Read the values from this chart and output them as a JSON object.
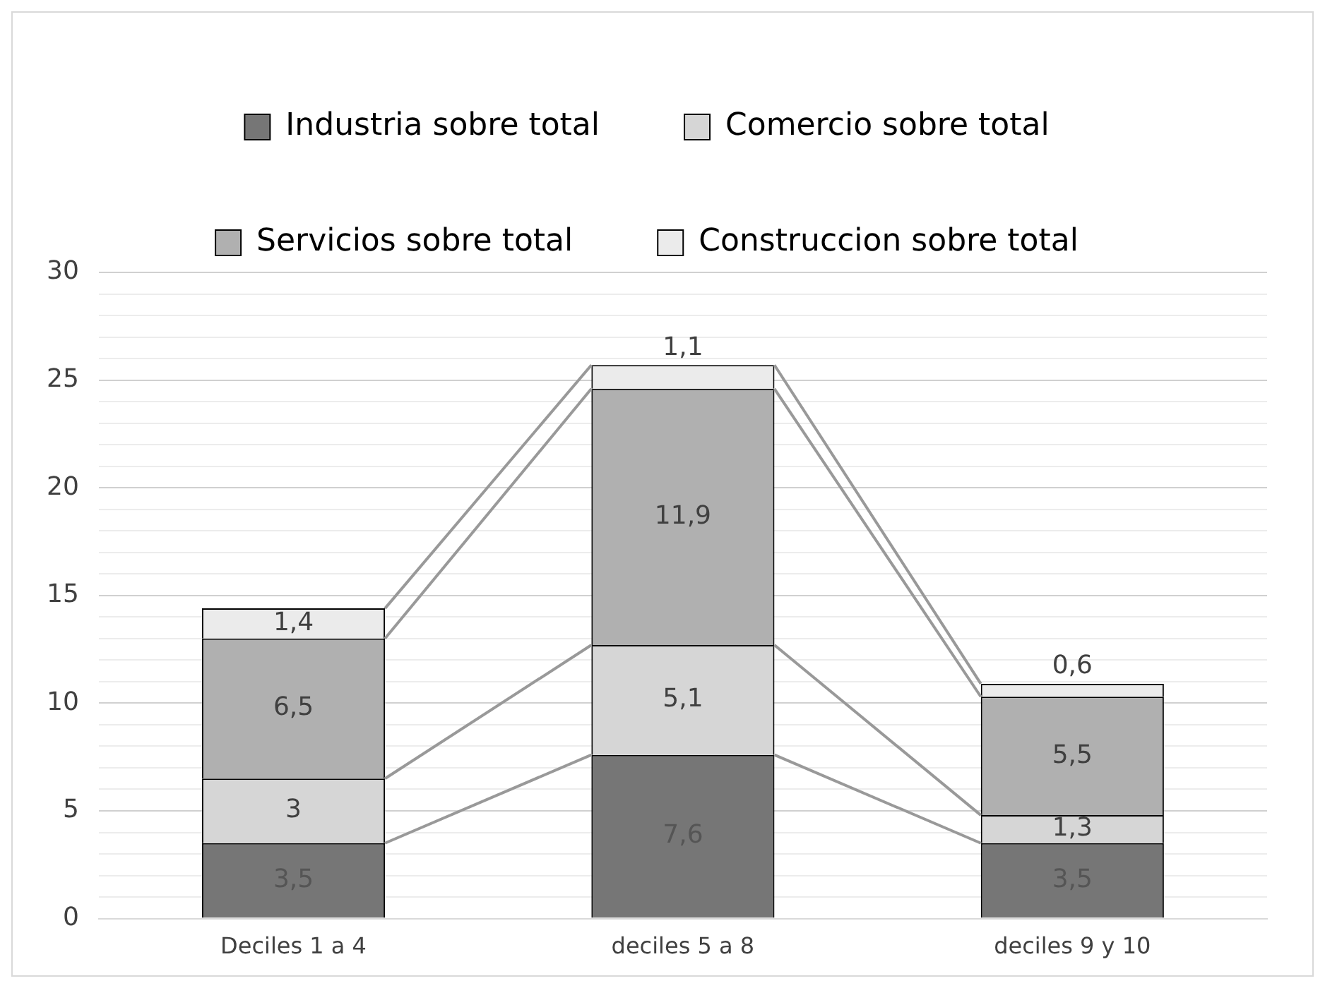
{
  "chart_data": {
    "type": "bar",
    "stacked": true,
    "categories": [
      "Deciles 1 a 4",
      "deciles 5 a 8",
      "deciles 9 y 10"
    ],
    "series": [
      {
        "name": "Industria sobre total",
        "color": "#767676",
        "values": [
          3.5,
          7.6,
          3.5
        ],
        "value_labels": [
          "3,5",
          "7,6",
          "3,5"
        ]
      },
      {
        "name": "Comercio sobre total",
        "color": "#d6d6d6",
        "values": [
          3,
          5.1,
          1.3
        ],
        "value_labels": [
          "3",
          "5,1",
          "1,3"
        ]
      },
      {
        "name": "Servicios sobre total",
        "color": "#b0b0b0",
        "values": [
          6.5,
          11.9,
          5.5
        ],
        "value_labels": [
          "6,5",
          "11,9",
          "5,5"
        ]
      },
      {
        "name": "Construccion sobre total",
        "color": "#ebebeb",
        "values": [
          1.4,
          1.1,
          0.6
        ],
        "value_labels": [
          "1,4",
          "1,1",
          "0,6"
        ]
      }
    ],
    "ylim": [
      0,
      30
    ],
    "yticks": [
      0,
      {
        "value": 1,
        "label": null
      },
      {
        "value": 2,
        "label": null
      },
      {
        "value": 3,
        "label": null
      },
      {
        "value": 4,
        "label": null
      },
      5,
      {
        "value": 6,
        "label": null
      },
      {
        "value": 7,
        "label": null
      },
      {
        "value": 8,
        "label": null
      },
      {
        "value": 9,
        "label": null
      },
      10,
      {
        "value": 11,
        "label": null
      },
      {
        "value": 12,
        "label": null
      },
      {
        "value": 13,
        "label": null
      },
      {
        "value": 14,
        "label": null
      },
      15,
      {
        "value": 16,
        "label": null
      },
      {
        "value": 17,
        "label": null
      },
      {
        "value": 18,
        "label": null
      },
      {
        "value": 19,
        "label": null
      },
      20,
      {
        "value": 21,
        "label": null
      },
      {
        "value": 22,
        "label": null
      },
      {
        "value": 23,
        "label": null
      },
      {
        "value": 24,
        "label": null
      },
      25,
      {
        "value": 26,
        "label": null
      },
      {
        "value": 27,
        "label": null
      },
      {
        "value": 28,
        "label": null
      },
      {
        "value": 29,
        "label": null
      },
      30
    ],
    "grid": "y",
    "legend": "top"
  }
}
